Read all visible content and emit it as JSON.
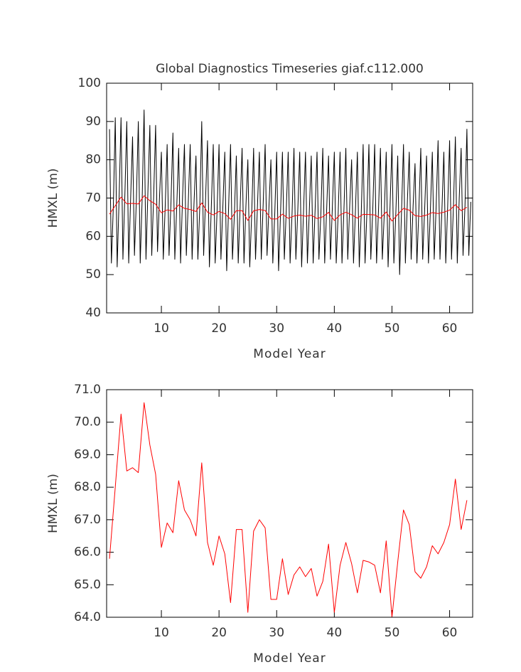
{
  "chart_data": [
    {
      "type": "line",
      "title": "Global Diagnostics Timeseries giaf.c112.000",
      "x_label": "Model Year",
      "y_label": "HMXL (m)",
      "xlim": [
        0.5,
        64
      ],
      "xticks": [
        10,
        20,
        30,
        40,
        50,
        60
      ],
      "ylim": [
        40,
        100
      ],
      "yticks": [
        40,
        50,
        60,
        70,
        80,
        90,
        100
      ],
      "series": [
        {
          "color": "#000000",
          "x": [
            1,
            1.33,
            1.67,
            2,
            2.33,
            2.67,
            3,
            3.33,
            3.67,
            4,
            4.33,
            4.67,
            5,
            5.33,
            5.67,
            6,
            6.33,
            6.67,
            7,
            7.33,
            7.67,
            8,
            8.33,
            8.67,
            9,
            9.33,
            9.67,
            10,
            10.33,
            10.67,
            11,
            11.33,
            11.67,
            12,
            12.33,
            12.67,
            13,
            13.33,
            13.67,
            14,
            14.33,
            14.67,
            15,
            15.33,
            15.67,
            16,
            16.33,
            16.67,
            17,
            17.33,
            17.67,
            18,
            18.33,
            18.67,
            19,
            19.33,
            19.67,
            20,
            20.33,
            20.67,
            21,
            21.33,
            21.67,
            22,
            22.33,
            22.67,
            23,
            23.33,
            23.67,
            24,
            24.33,
            24.67,
            25,
            25.33,
            25.67,
            26,
            26.33,
            26.67,
            27,
            27.33,
            27.67,
            28,
            28.33,
            28.67,
            29,
            29.33,
            29.67,
            30,
            30.33,
            30.67,
            31,
            31.33,
            31.67,
            32,
            32.33,
            32.67,
            33,
            33.33,
            33.67,
            34,
            34.33,
            34.67,
            35,
            35.33,
            35.67,
            36,
            36.33,
            36.67,
            37,
            37.33,
            37.67,
            38,
            38.33,
            38.67,
            39,
            39.33,
            39.67,
            40,
            40.33,
            40.67,
            41,
            41.33,
            41.67,
            42,
            42.33,
            42.67,
            43,
            43.33,
            43.67,
            44,
            44.33,
            44.67,
            45,
            45.33,
            45.67,
            46,
            46.33,
            46.67,
            47,
            47.33,
            47.67,
            48,
            48.33,
            48.67,
            49,
            49.33,
            49.67,
            50,
            50.33,
            50.67,
            51,
            51.33,
            51.67,
            52,
            52.33,
            52.67,
            53,
            53.33,
            53.67,
            54,
            54.33,
            54.67,
            55,
            55.33,
            55.67,
            56,
            56.33,
            56.67,
            57,
            57.33,
            57.67,
            58,
            58.33,
            58.67,
            59,
            59.33,
            59.67,
            60,
            60.33,
            60.67,
            61,
            61.33,
            61.67,
            62,
            62.33,
            62.67,
            63,
            63.33,
            63.67
          ],
          "values": [
            88,
            53,
            68,
            91,
            52,
            70,
            91,
            54,
            71,
            90,
            53,
            70,
            86,
            55,
            70,
            90,
            53,
            70,
            93,
            54,
            72,
            89,
            55,
            71,
            89,
            56,
            70,
            82,
            54,
            68,
            84,
            55,
            69,
            87,
            54,
            68,
            83,
            53,
            70,
            84,
            55,
            69,
            84,
            54,
            69,
            81,
            54,
            68,
            90,
            55,
            70,
            85,
            52,
            68,
            84,
            53,
            67,
            84,
            54,
            68,
            82,
            51,
            68,
            84,
            54,
            66,
            81,
            53,
            68,
            83,
            53,
            68,
            80,
            52,
            66,
            83,
            54,
            68,
            82,
            54,
            69,
            84,
            55,
            68,
            80,
            53,
            66,
            82,
            51,
            66,
            82,
            54,
            67,
            82,
            53,
            66,
            83,
            54,
            67,
            82,
            52,
            67,
            82,
            53,
            67,
            81,
            53,
            67,
            82,
            54,
            66,
            83,
            53,
            67,
            81,
            54,
            68,
            82,
            53,
            66,
            82,
            53,
            67,
            83,
            54,
            68,
            80,
            53,
            67,
            82,
            52,
            66,
            84,
            53,
            67,
            84,
            54,
            67,
            84,
            53,
            67,
            83,
            54,
            66,
            82,
            52,
            68,
            84,
            53,
            66,
            81,
            50,
            67,
            84,
            53,
            69,
            82,
            54,
            68,
            79,
            53,
            67,
            83,
            54,
            67,
            81,
            53,
            67,
            82,
            54,
            68,
            85,
            54,
            67,
            82,
            53,
            68,
            85,
            54,
            68,
            86,
            53,
            70,
            83,
            55,
            68,
            88,
            55,
            69
          ]
        },
        {
          "color": "#ff0000",
          "x": [
            1,
            2,
            3,
            4,
            5,
            6,
            7,
            8,
            9,
            10,
            11,
            12,
            13,
            14,
            15,
            16,
            17,
            18,
            19,
            20,
            21,
            22,
            23,
            24,
            25,
            26,
            27,
            28,
            29,
            30,
            31,
            32,
            33,
            34,
            35,
            36,
            37,
            38,
            39,
            40,
            41,
            42,
            43,
            44,
            45,
            46,
            47,
            48,
            49,
            50,
            51,
            52,
            53,
            54,
            55,
            56,
            57,
            58,
            59,
            60,
            61,
            62,
            63
          ],
          "values": [
            65.8,
            68.0,
            70.25,
            68.5,
            68.6,
            68.45,
            70.6,
            69.3,
            68.4,
            66.15,
            66.9,
            66.6,
            68.2,
            67.3,
            67.0,
            66.5,
            68.75,
            66.3,
            65.6,
            66.5,
            65.95,
            64.45,
            66.7,
            66.7,
            64.15,
            66.65,
            67.0,
            66.75,
            64.55,
            64.55,
            65.8,
            64.7,
            65.3,
            65.55,
            65.25,
            65.5,
            64.65,
            65.1,
            66.25,
            64.15,
            65.6,
            66.3,
            65.65,
            64.75,
            65.75,
            65.7,
            65.6,
            64.75,
            66.35,
            64.0,
            65.7,
            67.3,
            66.85,
            65.4,
            65.2,
            65.55,
            66.2,
            65.95,
            66.3,
            66.85,
            68.25,
            66.7,
            67.6
          ]
        }
      ]
    },
    {
      "type": "line",
      "x_label": "Model Year",
      "y_label": "HMXL (m)",
      "xlim": [
        0.5,
        64
      ],
      "xticks": [
        10,
        20,
        30,
        40,
        50,
        60
      ],
      "ylim": [
        64,
        71
      ],
      "yticks": [
        {
          "value": 64,
          "label": "64.0"
        },
        {
          "value": 65,
          "label": "65.0"
        },
        {
          "value": 66,
          "label": "66.0"
        },
        {
          "value": 67,
          "label": "67.0"
        },
        {
          "value": 68,
          "label": "68.0"
        },
        {
          "value": 69,
          "label": "69.0"
        },
        {
          "value": 70,
          "label": "70.0"
        },
        {
          "value": 71,
          "label": "71.0"
        }
      ],
      "series": [
        {
          "color": "#ff0000",
          "x": [
            1,
            2,
            3,
            4,
            5,
            6,
            7,
            8,
            9,
            10,
            11,
            12,
            13,
            14,
            15,
            16,
            17,
            18,
            19,
            20,
            21,
            22,
            23,
            24,
            25,
            26,
            27,
            28,
            29,
            30,
            31,
            32,
            33,
            34,
            35,
            36,
            37,
            38,
            39,
            40,
            41,
            42,
            43,
            44,
            45,
            46,
            47,
            48,
            49,
            50,
            51,
            52,
            53,
            54,
            55,
            56,
            57,
            58,
            59,
            60,
            61,
            62,
            63
          ],
          "values": [
            65.8,
            68.0,
            70.25,
            68.5,
            68.6,
            68.45,
            70.6,
            69.3,
            68.4,
            66.15,
            66.9,
            66.6,
            68.2,
            67.3,
            67.0,
            66.5,
            68.75,
            66.3,
            65.6,
            66.5,
            65.95,
            64.45,
            66.7,
            66.7,
            64.15,
            66.65,
            67.0,
            66.75,
            64.55,
            64.55,
            65.8,
            64.7,
            65.3,
            65.55,
            65.25,
            65.5,
            64.65,
            65.1,
            66.25,
            64.15,
            65.6,
            66.3,
            65.65,
            64.75,
            65.75,
            65.7,
            65.6,
            64.75,
            66.35,
            64.0,
            65.7,
            67.3,
            66.85,
            65.4,
            65.2,
            65.55,
            66.2,
            65.95,
            66.3,
            66.85,
            68.25,
            66.7,
            67.6
          ]
        }
      ]
    }
  ]
}
